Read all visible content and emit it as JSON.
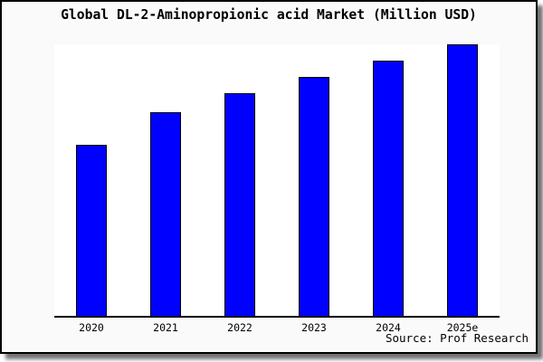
{
  "card": {
    "title": "Global DL-2-Aminopropionic acid Market (Million USD)",
    "source": "Source: Prof Research"
  },
  "colors": {
    "bar_fill": "#0000fe",
    "bar_border": "#000000",
    "plot_background": "#ffffff",
    "card_background": "#fafafa",
    "axis": "#000000",
    "text": "#000000"
  },
  "chart_data": {
    "type": "bar",
    "title": "Global DL-2-Aminopropionic acid Market (Million USD)",
    "categories": [
      "2020",
      "2021",
      "2022",
      "2023",
      "2024",
      "2025e"
    ],
    "values": [
      63,
      75,
      82,
      88,
      94,
      100
    ],
    "xlabel": "",
    "ylabel": "",
    "ylim": [
      0,
      100.7
    ],
    "y_axis_labels_visible": false,
    "gridlines": false,
    "legend": false,
    "value_note": "No y-axis scale or data labels shown in image; values are relative bar heights normalized so 2025e = 100",
    "source": "Source: Prof Research"
  }
}
